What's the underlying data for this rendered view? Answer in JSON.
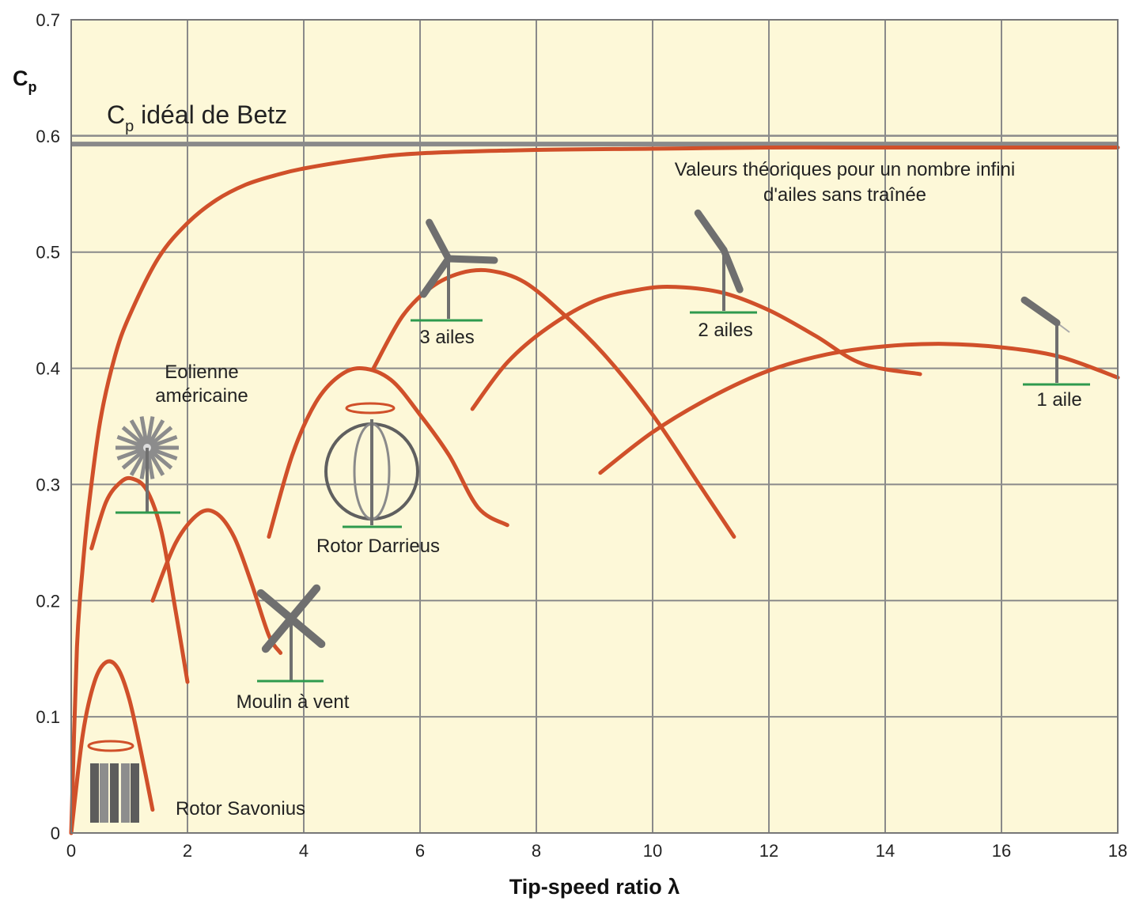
{
  "chart_data": {
    "type": "line",
    "xlabel": "Tip-speed ratio λ",
    "ylabel": "C",
    "ylabel_sub": "p",
    "xlim": [
      0,
      18
    ],
    "ylim": [
      0,
      0.7
    ],
    "x_ticks": [
      "0",
      "2",
      "4",
      "6",
      "8",
      "10",
      "12",
      "14",
      "16",
      "18"
    ],
    "y_ticks": [
      "0",
      "0.1",
      "0.2",
      "0.3",
      "0.4",
      "0.5",
      "0.6",
      "0.7"
    ],
    "grid": true,
    "colors": {
      "background": "#fdf8d8",
      "grid": "#8a8a8a",
      "curve": "#d0502a",
      "betz": "#8a8a8a",
      "ground": "#2e9a4e",
      "icon": "#6f6f6f"
    },
    "betz": {
      "value": 0.593,
      "label_main": "C",
      "label_sub": "p",
      "label_rest": " idéal de Betz"
    },
    "series": [
      {
        "label": [
          "Valeurs théoriques pour un nombre infini",
          "d'ailes sans traînée"
        ],
        "x": [
          0,
          0.1,
          0.2,
          0.3,
          0.5,
          0.75,
          1,
          1.5,
          2,
          2.5,
          3,
          3.5,
          4,
          5,
          6,
          8,
          10,
          12,
          14,
          16,
          18
        ],
        "y": [
          0,
          0.16,
          0.23,
          0.28,
          0.355,
          0.41,
          0.445,
          0.495,
          0.525,
          0.545,
          0.558,
          0.566,
          0.572,
          0.58,
          0.585,
          0.588,
          0.589,
          0.59,
          0.59,
          0.59,
          0.59
        ]
      },
      {
        "label": [
          "Rotor Savonius"
        ],
        "icon": "savonius-rotor-icon",
        "x": [
          0,
          0.2,
          0.4,
          0.6,
          0.8,
          1.0,
          1.2,
          1.4
        ],
        "y": [
          0,
          0.085,
          0.13,
          0.147,
          0.142,
          0.115,
          0.07,
          0.02
        ]
      },
      {
        "label": [
          "Eolienne",
          "américaine"
        ],
        "icon": "american-windmill-icon",
        "x": [
          0.35,
          0.6,
          0.85,
          1.05,
          1.3,
          1.55,
          1.8,
          2.0
        ],
        "y": [
          0.245,
          0.285,
          0.302,
          0.305,
          0.295,
          0.26,
          0.19,
          0.13
        ]
      },
      {
        "label": [
          "Moulin à vent"
        ],
        "icon": "windmill-icon",
        "x": [
          1.4,
          1.8,
          2.2,
          2.5,
          2.8,
          3.1,
          3.4,
          3.6
        ],
        "y": [
          0.2,
          0.25,
          0.275,
          0.275,
          0.255,
          0.215,
          0.17,
          0.155
        ]
      },
      {
        "label": [
          "Rotor Darrieus"
        ],
        "icon": "darrieus-rotor-icon",
        "x": [
          3.4,
          3.8,
          4.2,
          4.6,
          5.0,
          5.5,
          6.0,
          6.5,
          7.0,
          7.5
        ],
        "y": [
          0.255,
          0.325,
          0.37,
          0.393,
          0.4,
          0.39,
          0.36,
          0.325,
          0.28,
          0.265
        ]
      },
      {
        "label": [
          "3 ailes"
        ],
        "icon": "three-blade-turbine-icon",
        "x": [
          5.2,
          5.7,
          6.2,
          6.7,
          7.2,
          7.8,
          8.5,
          9.2,
          10.0,
          10.8,
          11.4
        ],
        "y": [
          0.4,
          0.445,
          0.47,
          0.482,
          0.484,
          0.474,
          0.445,
          0.41,
          0.36,
          0.3,
          0.255
        ]
      },
      {
        "label": [
          "2 ailes"
        ],
        "icon": "two-blade-turbine-icon",
        "x": [
          6.9,
          7.5,
          8.2,
          9.0,
          9.8,
          10.4,
          11.2,
          12.0,
          12.8,
          13.6,
          14.6
        ],
        "y": [
          0.365,
          0.405,
          0.435,
          0.458,
          0.468,
          0.47,
          0.465,
          0.45,
          0.428,
          0.404,
          0.395
        ]
      },
      {
        "label": [
          "1 aile"
        ],
        "icon": "one-blade-turbine-icon",
        "x": [
          9.1,
          10.0,
          11.0,
          12.0,
          13.0,
          14.0,
          15.0,
          16.0,
          17.0,
          18.0
        ],
        "y": [
          0.31,
          0.345,
          0.375,
          0.398,
          0.412,
          0.419,
          0.421,
          0.418,
          0.41,
          0.392
        ]
      }
    ]
  }
}
